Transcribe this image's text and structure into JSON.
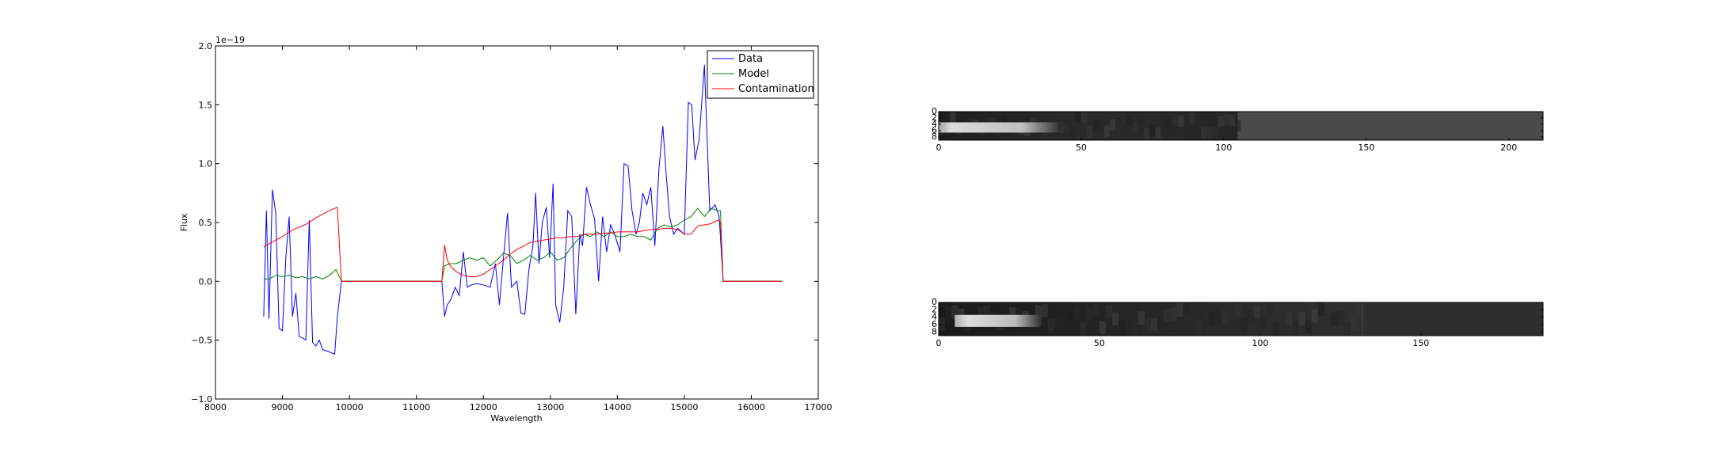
{
  "chart_data": [
    {
      "type": "line",
      "xlabel": "Wavelength",
      "ylabel": "Flux",
      "offset_text": "1e−19",
      "xlim": [
        8000,
        17000
      ],
      "ylim": [
        -1.0,
        2.0
      ],
      "xticks": [
        8000,
        9000,
        10000,
        11000,
        12000,
        13000,
        14000,
        15000,
        16000,
        17000
      ],
      "yticks": [
        -1.0,
        -0.5,
        0.0,
        0.5,
        1.0,
        1.5,
        2.0
      ],
      "xtick_labels": [
        "8000",
        "9000",
        "10000",
        "11000",
        "12000",
        "13000",
        "14000",
        "15000",
        "16000",
        "17000"
      ],
      "ytick_labels": [
        "−1.0",
        "−0.5",
        "0.0",
        "0.5",
        "1.0",
        "1.5",
        "2.0"
      ],
      "legend_position": "top-right",
      "grid": false,
      "series": [
        {
          "name": "Data",
          "color": "#0000ff",
          "points": [
            [
              8720,
              -0.3
            ],
            [
              8760,
              0.6
            ],
            [
              8800,
              -0.32
            ],
            [
              8850,
              0.78
            ],
            [
              8900,
              0.58
            ],
            [
              8950,
              -0.4
            ],
            [
              9000,
              -0.42
            ],
            [
              9050,
              0.2
            ],
            [
              9100,
              0.55
            ],
            [
              9150,
              -0.3
            ],
            [
              9200,
              -0.1
            ],
            [
              9250,
              -0.47
            ],
            [
              9300,
              -0.48
            ],
            [
              9350,
              -0.5
            ],
            [
              9400,
              0.52
            ],
            [
              9450,
              -0.52
            ],
            [
              9500,
              -0.55
            ],
            [
              9550,
              -0.5
            ],
            [
              9600,
              -0.58
            ],
            [
              9700,
              -0.6
            ],
            [
              9780,
              -0.62
            ],
            [
              9820,
              -0.3
            ],
            [
              9880,
              0.0
            ],
            [
              11380,
              0.0
            ],
            [
              11420,
              -0.3
            ],
            [
              11460,
              -0.2
            ],
            [
              11520,
              -0.15
            ],
            [
              11580,
              -0.05
            ],
            [
              11640,
              -0.12
            ],
            [
              11700,
              0.25
            ],
            [
              11760,
              -0.05
            ],
            [
              11820,
              -0.03
            ],
            [
              11900,
              -0.02
            ],
            [
              12000,
              -0.03
            ],
            [
              12100,
              -0.05
            ],
            [
              12180,
              0.15
            ],
            [
              12240,
              -0.2
            ],
            [
              12300,
              0.2
            ],
            [
              12360,
              0.58
            ],
            [
              12420,
              -0.05
            ],
            [
              12500,
              0.0
            ],
            [
              12560,
              -0.27
            ],
            [
              12620,
              -0.28
            ],
            [
              12680,
              0.1
            ],
            [
              12740,
              0.3
            ],
            [
              12780,
              0.75
            ],
            [
              12830,
              0.15
            ],
            [
              12880,
              0.5
            ],
            [
              12940,
              0.63
            ],
            [
              12990,
              0.2
            ],
            [
              13040,
              0.83
            ],
            [
              13080,
              -0.2
            ],
            [
              13140,
              -0.35
            ],
            [
              13200,
              -0.05
            ],
            [
              13260,
              0.6
            ],
            [
              13320,
              0.55
            ],
            [
              13380,
              -0.28
            ],
            [
              13440,
              0.4
            ],
            [
              13480,
              0.3
            ],
            [
              13540,
              0.8
            ],
            [
              13600,
              0.65
            ],
            [
              13660,
              0.53
            ],
            [
              13720,
              0.0
            ],
            [
              13780,
              0.55
            ],
            [
              13840,
              0.25
            ],
            [
              13900,
              0.48
            ],
            [
              13960,
              0.4
            ],
            [
              14040,
              0.25
            ],
            [
              14100,
              1.0
            ],
            [
              14160,
              0.98
            ],
            [
              14220,
              0.6
            ],
            [
              14280,
              0.4
            ],
            [
              14330,
              0.5
            ],
            [
              14380,
              0.75
            ],
            [
              14440,
              0.65
            ],
            [
              14500,
              0.8
            ],
            [
              14560,
              0.3
            ],
            [
              14620,
              0.95
            ],
            [
              14680,
              1.32
            ],
            [
              14730,
              0.9
            ],
            [
              14780,
              0.55
            ],
            [
              14840,
              0.4
            ],
            [
              14900,
              0.45
            ],
            [
              15000,
              0.4
            ],
            [
              15060,
              1.52
            ],
            [
              15110,
              1.5
            ],
            [
              15160,
              1.03
            ],
            [
              15220,
              1.2
            ],
            [
              15300,
              1.84
            ],
            [
              15380,
              0.6
            ],
            [
              15460,
              0.65
            ],
            [
              15520,
              0.55
            ],
            [
              15580,
              0.0
            ],
            [
              16460,
              0.0
            ]
          ]
        },
        {
          "name": "Model",
          "color": "#008000",
          "points": [
            [
              8720,
              0.02
            ],
            [
              8800,
              0.02
            ],
            [
              8900,
              0.05
            ],
            [
              9000,
              0.04
            ],
            [
              9100,
              0.05
            ],
            [
              9200,
              0.03
            ],
            [
              9300,
              0.04
            ],
            [
              9400,
              0.02
            ],
            [
              9500,
              0.04
            ],
            [
              9600,
              0.02
            ],
            [
              9700,
              0.05
            ],
            [
              9800,
              0.1
            ],
            [
              9880,
              0.0
            ],
            [
              11380,
              0.0
            ],
            [
              11420,
              0.13
            ],
            [
              11500,
              0.15
            ],
            [
              11600,
              0.15
            ],
            [
              11700,
              0.18
            ],
            [
              11800,
              0.2
            ],
            [
              11900,
              0.18
            ],
            [
              12000,
              0.2
            ],
            [
              12100,
              0.13
            ],
            [
              12200,
              0.18
            ],
            [
              12300,
              0.24
            ],
            [
              12400,
              0.22
            ],
            [
              12500,
              0.15
            ],
            [
              12600,
              0.18
            ],
            [
              12700,
              0.22
            ],
            [
              12800,
              0.18
            ],
            [
              12900,
              0.2
            ],
            [
              13000,
              0.25
            ],
            [
              13100,
              0.18
            ],
            [
              13200,
              0.2
            ],
            [
              13300,
              0.28
            ],
            [
              13400,
              0.35
            ],
            [
              13500,
              0.4
            ],
            [
              13600,
              0.38
            ],
            [
              13700,
              0.42
            ],
            [
              13800,
              0.38
            ],
            [
              13900,
              0.42
            ],
            [
              14000,
              0.38
            ],
            [
              14100,
              0.38
            ],
            [
              14200,
              0.4
            ],
            [
              14300,
              0.38
            ],
            [
              14400,
              0.38
            ],
            [
              14500,
              0.35
            ],
            [
              14600,
              0.45
            ],
            [
              14700,
              0.48
            ],
            [
              14800,
              0.46
            ],
            [
              14900,
              0.48
            ],
            [
              15000,
              0.52
            ],
            [
              15100,
              0.55
            ],
            [
              15200,
              0.62
            ],
            [
              15300,
              0.55
            ],
            [
              15400,
              0.62
            ],
            [
              15500,
              0.6
            ],
            [
              15540,
              0.6
            ],
            [
              15580,
              0.0
            ],
            [
              16460,
              0.0
            ]
          ]
        },
        {
          "name": "Contamination",
          "color": "#ff0000",
          "points": [
            [
              8720,
              0.29
            ],
            [
              8800,
              0.32
            ],
            [
              8900,
              0.35
            ],
            [
              9000,
              0.38
            ],
            [
              9100,
              0.42
            ],
            [
              9200,
              0.45
            ],
            [
              9300,
              0.47
            ],
            [
              9400,
              0.5
            ],
            [
              9500,
              0.54
            ],
            [
              9600,
              0.57
            ],
            [
              9700,
              0.6
            ],
            [
              9820,
              0.63
            ],
            [
              9880,
              0.0
            ],
            [
              11380,
              0.0
            ],
            [
              11420,
              0.31
            ],
            [
              11460,
              0.18
            ],
            [
              11520,
              0.12
            ],
            [
              11600,
              0.08
            ],
            [
              11700,
              0.05
            ],
            [
              11800,
              0.04
            ],
            [
              11900,
              0.04
            ],
            [
              12000,
              0.06
            ],
            [
              12100,
              0.1
            ],
            [
              12200,
              0.14
            ],
            [
              12300,
              0.18
            ],
            [
              12400,
              0.23
            ],
            [
              12500,
              0.27
            ],
            [
              12600,
              0.3
            ],
            [
              12700,
              0.33
            ],
            [
              12800,
              0.34
            ],
            [
              12900,
              0.35
            ],
            [
              13000,
              0.36
            ],
            [
              13100,
              0.37
            ],
            [
              13200,
              0.37
            ],
            [
              13300,
              0.38
            ],
            [
              13400,
              0.38
            ],
            [
              13500,
              0.4
            ],
            [
              13600,
              0.4
            ],
            [
              13700,
              0.4
            ],
            [
              13800,
              0.41
            ],
            [
              13900,
              0.41
            ],
            [
              14000,
              0.42
            ],
            [
              14100,
              0.42
            ],
            [
              14200,
              0.42
            ],
            [
              14300,
              0.42
            ],
            [
              14400,
              0.43
            ],
            [
              14500,
              0.44
            ],
            [
              14600,
              0.44
            ],
            [
              14700,
              0.45
            ],
            [
              14800,
              0.45
            ],
            [
              14900,
              0.44
            ],
            [
              15000,
              0.4
            ],
            [
              15100,
              0.4
            ],
            [
              15200,
              0.47
            ],
            [
              15300,
              0.48
            ],
            [
              15400,
              0.49
            ],
            [
              15500,
              0.52
            ],
            [
              15540,
              0.5
            ],
            [
              15580,
              0.0
            ],
            [
              16460,
              0.0
            ]
          ]
        }
      ]
    },
    {
      "type": "heatmap",
      "colormap": "gray",
      "xlim": [
        0,
        212
      ],
      "ylim": [
        9,
        0
      ],
      "xticks": [
        0,
        50,
        100,
        150,
        200
      ],
      "xtick_labels": [
        "0",
        "50",
        "100",
        "150",
        "200"
      ],
      "yticks": [
        0,
        2,
        4,
        6,
        8
      ],
      "ytick_labels": [
        "0",
        "2",
        "4",
        "6",
        "8"
      ],
      "trace_extent_x": [
        0,
        42
      ],
      "trace_row": 5,
      "data_extent_x": [
        0,
        105
      ]
    },
    {
      "type": "heatmap",
      "colormap": "gray",
      "xlim": [
        0,
        188
      ],
      "ylim": [
        9,
        0
      ],
      "xticks": [
        0,
        50,
        100,
        150
      ],
      "xtick_labels": [
        "0",
        "50",
        "100",
        "150"
      ],
      "yticks": [
        0,
        2,
        4,
        6,
        8
      ],
      "ytick_labels": [
        "0",
        "2",
        "4",
        "6",
        "8"
      ],
      "trace_extent_x": [
        5,
        32
      ],
      "trace_row": 5,
      "data_extent_x": [
        0,
        132
      ]
    }
  ]
}
